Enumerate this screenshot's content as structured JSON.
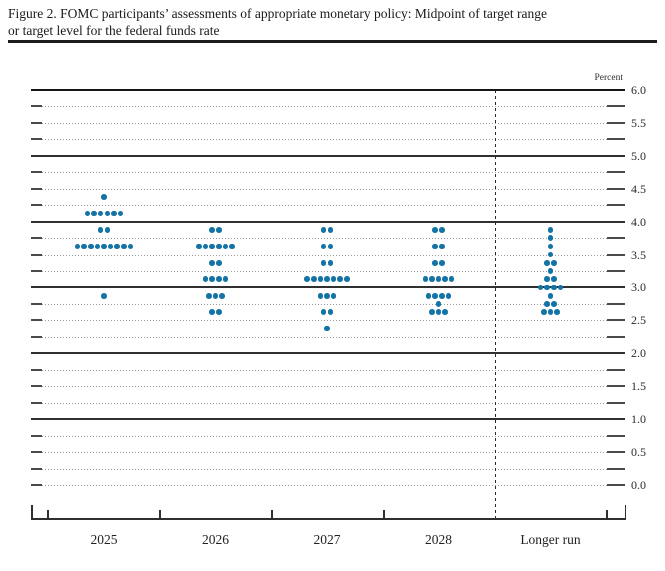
{
  "document": {
    "title_line1": "Figure 2. FOMC participants’ assessments of appropriate monetary policy: Midpoint of target range",
    "title_line2": "or target level for the federal funds rate"
  },
  "chart_data": {
    "type": "scatter",
    "title": "FOMC participants’ assessments of appropriate monetary policy: Midpoint of target range or target level for the federal funds rate",
    "ylabel": "Percent",
    "xlabel": "",
    "ylim": [
      -0.5,
      6.0
    ],
    "grid_on": true,
    "legend_position": "none",
    "dot_color": "#1473a6",
    "y_axis": {
      "unit_label": "Percent",
      "tick_labels": [
        "6.0",
        "5.5",
        "5.0",
        "4.5",
        "4.0",
        "3.5",
        "3.0",
        "2.5",
        "2.0",
        "1.5",
        "1.0",
        "0.5",
        "0.0"
      ],
      "tick_label_step": 0.5,
      "solid_gridlines": [
        6.0,
        5.0,
        4.0,
        3.0,
        2.0,
        1.0
      ],
      "dotted_gridline_step": 0.25,
      "dotted_gridline_top": 6.0,
      "dotted_gridline_bottom": 0.0
    },
    "categories": [
      "2025",
      "2026",
      "2027",
      "2028",
      "Longer run"
    ],
    "separator_before_category": "Longer run",
    "series": [
      {
        "name": "2025",
        "dots": [
          {
            "rate": 4.375,
            "count": 1
          },
          {
            "rate": 4.125,
            "count": 6
          },
          {
            "rate": 3.875,
            "count": 2
          },
          {
            "rate": 3.625,
            "count": 9
          },
          {
            "rate": 2.875,
            "count": 1
          }
        ]
      },
      {
        "name": "2026",
        "dots": [
          {
            "rate": 3.875,
            "count": 2
          },
          {
            "rate": 3.625,
            "count": 6
          },
          {
            "rate": 3.375,
            "count": 2
          },
          {
            "rate": 3.125,
            "count": 4
          },
          {
            "rate": 2.875,
            "count": 3
          },
          {
            "rate": 2.625,
            "count": 2
          }
        ]
      },
      {
        "name": "2027",
        "dots": [
          {
            "rate": 3.875,
            "count": 2
          },
          {
            "rate": 3.625,
            "count": 2
          },
          {
            "rate": 3.375,
            "count": 2
          },
          {
            "rate": 3.125,
            "count": 7
          },
          {
            "rate": 2.875,
            "count": 3
          },
          {
            "rate": 2.625,
            "count": 2
          },
          {
            "rate": 2.375,
            "count": 1
          }
        ]
      },
      {
        "name": "2028",
        "dots": [
          {
            "rate": 3.875,
            "count": 2
          },
          {
            "rate": 3.625,
            "count": 2
          },
          {
            "rate": 3.375,
            "count": 2
          },
          {
            "rate": 3.125,
            "count": 5
          },
          {
            "rate": 2.875,
            "count": 4
          },
          {
            "rate": 2.75,
            "count": 1
          },
          {
            "rate": 2.625,
            "count": 3
          }
        ]
      },
      {
        "name": "Longer run",
        "dots": [
          {
            "rate": 3.875,
            "count": 1
          },
          {
            "rate": 3.75,
            "count": 1
          },
          {
            "rate": 3.625,
            "count": 1
          },
          {
            "rate": 3.5,
            "count": 1
          },
          {
            "rate": 3.375,
            "count": 2
          },
          {
            "rate": 3.25,
            "count": 1
          },
          {
            "rate": 3.125,
            "count": 2
          },
          {
            "rate": 3.0,
            "count": 4
          },
          {
            "rate": 2.875,
            "count": 1
          },
          {
            "rate": 2.75,
            "count": 2
          },
          {
            "rate": 2.625,
            "count": 3
          }
        ]
      }
    ]
  }
}
